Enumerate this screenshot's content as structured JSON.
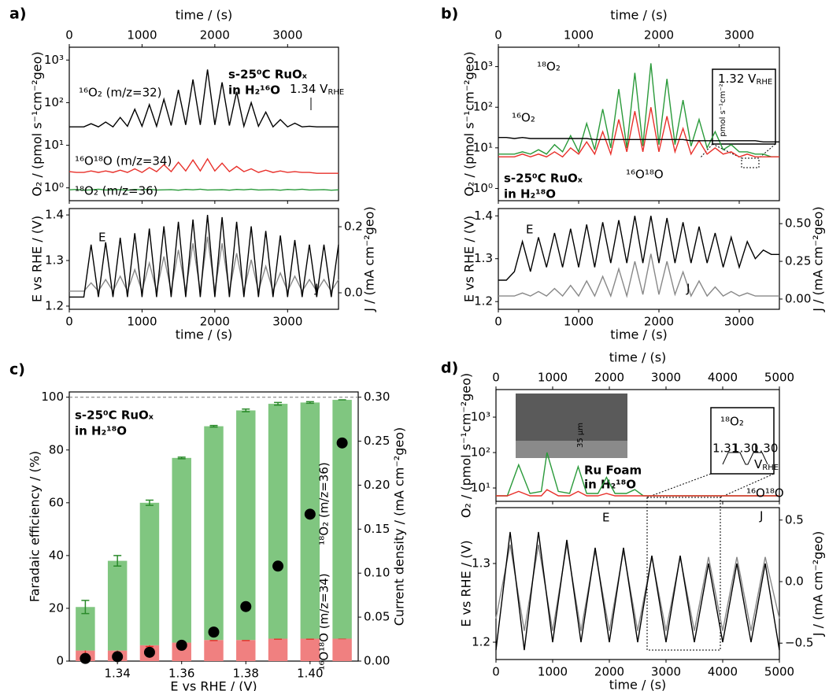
{
  "chart_data": [
    {
      "type": "line",
      "panel": "a)",
      "x_axis": "top",
      "xlabel": "time / (s)",
      "ylabel": "O₂ / (pmol s⁻¹cm⁻²geo)",
      "log_y": true,
      "xlim": [
        0,
        3700
      ],
      "xticks": [
        0,
        1000,
        2000,
        3000
      ],
      "ylim": [
        0.5,
        2000
      ],
      "yticks": [
        {
          "value": 1,
          "label": "10⁰"
        },
        {
          "value": 10,
          "label": "10¹"
        },
        {
          "value": 100,
          "label": "10²"
        },
        {
          "value": 1000,
          "label": "10³"
        }
      ],
      "x": [
        0,
        100,
        200,
        300,
        400,
        500,
        600,
        700,
        800,
        900,
        1000,
        1100,
        1200,
        1300,
        1400,
        1500,
        1600,
        1700,
        1800,
        1900,
        2000,
        2100,
        2200,
        2300,
        2400,
        2500,
        2600,
        2700,
        2800,
        2900,
        3000,
        3100,
        3200,
        3300,
        3400,
        3500,
        3600,
        3700
      ],
      "series": [
        {
          "name": "¹⁶O₂ (m/z=32)",
          "color": "#000000",
          "values": [
            27,
            27,
            27,
            32,
            27,
            35,
            27,
            45,
            28,
            70,
            28,
            90,
            28,
            120,
            29,
            200,
            30,
            350,
            30,
            600,
            30,
            300,
            29,
            180,
            28,
            100,
            28,
            60,
            27,
            40,
            27,
            33,
            27,
            28,
            27,
            27,
            27,
            27
          ]
        },
        {
          "name": "¹⁶O¹⁸O (m/z=34)",
          "color": "#e8302a",
          "values": [
            2.4,
            2.3,
            2.3,
            2.5,
            2.3,
            2.5,
            2.3,
            2.6,
            2.3,
            2.8,
            2.3,
            3.0,
            2.4,
            3.5,
            2.4,
            4.0,
            2.5,
            4.5,
            2.5,
            4.8,
            2.5,
            3.8,
            2.4,
            3.2,
            2.4,
            2.8,
            2.3,
            2.6,
            2.3,
            2.5,
            2.3,
            2.4,
            2.3,
            2.3,
            2.2,
            2.2,
            2.2,
            2.2
          ]
        },
        {
          "name": "¹⁸O₂ (m/z=36)",
          "color": "#2a9a3a",
          "values": [
            0.9,
            0.92,
            0.88,
            0.9,
            0.93,
            0.89,
            0.9,
            0.91,
            0.88,
            0.92,
            0.9,
            0.93,
            0.89,
            0.9,
            0.91,
            0.88,
            0.92,
            0.9,
            0.93,
            0.89,
            0.9,
            0.91,
            0.88,
            0.92,
            0.9,
            0.93,
            0.89,
            0.9,
            0.91,
            0.88,
            0.92,
            0.9,
            0.93,
            0.89,
            0.9,
            0.91,
            0.88,
            0.9
          ]
        }
      ],
      "annotations": [
        {
          "text": "s-25⁰C RuOₓ",
          "bold": true
        },
        {
          "text": "in H₂¹⁶O",
          "bold": true
        },
        {
          "text": "1.34 V",
          "sub": "RHE"
        }
      ]
    },
    {
      "type": "line",
      "x_axis": "bottom",
      "xlabel": "time / (s)",
      "ylabel": "E vs RHE / (V)",
      "y2label": "J / (mA cm⁻²geo)",
      "xlim": [
        0,
        3700
      ],
      "xticks": [
        0,
        1000,
        2000,
        3000
      ],
      "ylim": [
        1.193,
        1.414
      ],
      "yticks": [
        1.2,
        1.3,
        1.4
      ],
      "y2lim": [
        -0.05,
        0.255
      ],
      "y2ticks": [
        {
          "value": 0,
          "label": "0.0"
        },
        0.2
      ],
      "x": [
        0,
        100,
        200,
        300,
        400,
        500,
        600,
        700,
        800,
        900,
        1000,
        1100,
        1200,
        1300,
        1400,
        1500,
        1600,
        1700,
        1800,
        1900,
        2000,
        2100,
        2200,
        2300,
        2400,
        2500,
        2600,
        2700,
        2800,
        2900,
        3000,
        3100,
        3200,
        3300,
        3400,
        3500,
        3600,
        3700
      ],
      "series": [
        {
          "name": "J",
          "color": "#888888",
          "axis": "y2",
          "values": [
            0.005,
            0.005,
            0.005,
            0.03,
            0.005,
            0.04,
            0.005,
            0.05,
            0.005,
            0.07,
            0.005,
            0.09,
            0.005,
            0.11,
            0.005,
            0.13,
            0.005,
            0.15,
            0.005,
            0.17,
            0.005,
            0.15,
            0.005,
            0.12,
            0.005,
            0.1,
            0.005,
            0.08,
            0.005,
            0.06,
            0.005,
            0.05,
            0.005,
            0.04,
            0.005,
            0.04,
            0.005,
            0.04
          ]
        },
        {
          "name": "E",
          "color": "#000000",
          "values": [
            1.22,
            1.22,
            1.22,
            1.335,
            1.22,
            1.34,
            1.22,
            1.35,
            1.22,
            1.36,
            1.22,
            1.37,
            1.22,
            1.375,
            1.22,
            1.385,
            1.22,
            1.39,
            1.22,
            1.4,
            1.22,
            1.395,
            1.22,
            1.385,
            1.22,
            1.375,
            1.22,
            1.365,
            1.22,
            1.355,
            1.22,
            1.345,
            1.22,
            1.335,
            1.22,
            1.335,
            1.22,
            1.335
          ]
        }
      ]
    },
    {
      "type": "line",
      "panel": "b)",
      "x_axis": "top",
      "xlabel": "time / (s)",
      "ylabel": "O₂ / (pmol s⁻¹cm⁻²geo)",
      "log_y": true,
      "xlim": [
        0,
        3500
      ],
      "xticks": [
        0,
        1000,
        2000,
        3000
      ],
      "ylim": [
        0.5,
        3000
      ],
      "yticks": [
        {
          "value": 1,
          "label": "10⁰"
        },
        {
          "value": 10,
          "label": "10¹"
        },
        {
          "value": 100,
          "label": "10²"
        },
        {
          "value": 1000,
          "label": "10³"
        }
      ],
      "x": [
        0,
        100,
        200,
        300,
        400,
        500,
        600,
        700,
        800,
        900,
        1000,
        1100,
        1200,
        1300,
        1400,
        1500,
        1600,
        1700,
        1800,
        1900,
        2000,
        2100,
        2200,
        2300,
        2400,
        2500,
        2600,
        2700,
        2800,
        2900,
        3000,
        3100,
        3200,
        3300,
        3400,
        3500
      ],
      "series": [
        {
          "name": "¹⁸O₂",
          "color": "#2a9a3a",
          "values": [
            7,
            7,
            7,
            8,
            7,
            9,
            7,
            12,
            8,
            20,
            8,
            40,
            9,
            90,
            10,
            280,
            10,
            700,
            11,
            1200,
            12,
            500,
            12,
            150,
            11,
            50,
            10,
            25,
            9,
            12,
            8,
            8,
            7,
            7,
            6,
            6
          ]
        },
        {
          "name": "¹⁶O¹⁸O",
          "color": "#e8302a",
          "values": [
            6,
            6,
            6,
            7,
            6,
            7,
            6,
            8,
            6,
            10,
            7,
            14,
            7,
            25,
            7,
            50,
            8,
            80,
            8,
            100,
            8,
            60,
            8,
            30,
            7,
            15,
            7,
            10,
            7,
            8,
            6,
            7,
            6,
            6,
            6,
            6
          ]
        },
        {
          "name": "¹⁶O₂",
          "color": "#000000",
          "values": [
            18,
            18,
            17,
            18,
            17,
            17,
            17,
            17,
            17,
            17,
            17,
            17,
            16,
            16,
            16,
            16,
            16,
            16,
            16,
            16,
            16,
            16,
            16,
            16,
            15,
            15,
            15,
            15,
            15,
            15,
            15,
            15,
            15,
            14,
            14,
            14
          ]
        }
      ],
      "annotations": [
        {
          "text": "s-25⁰C RuOₓ",
          "bold": true
        },
        {
          "text": "in H₂¹⁸O",
          "bold": true
        },
        {
          "text": "1.32 V",
          "sub": "RHE"
        },
        {
          "text": "pmol s⁻¹cm⁻²"
        }
      ]
    },
    {
      "type": "line",
      "x_axis": "bottom",
      "xlabel": "time / (s)",
      "ylabel": "E vs RHE / (V)",
      "y2label": "J / (mA cm⁻²geo)",
      "xlim": [
        0,
        3500
      ],
      "xticks": [
        0,
        1000,
        2000,
        3000
      ],
      "ylim": [
        1.182,
        1.417
      ],
      "yticks": [
        1.2,
        1.3,
        1.4
      ],
      "y2lim": [
        -0.068,
        0.6
      ],
      "y2ticks": [
        {
          "value": 0,
          "label": "0.00"
        },
        0.25,
        {
          "value": 0.5,
          "label": "0.50"
        }
      ],
      "x": [
        0,
        100,
        200,
        300,
        400,
        500,
        600,
        700,
        800,
        900,
        1000,
        1100,
        1200,
        1300,
        1400,
        1500,
        1600,
        1700,
        1800,
        1900,
        2000,
        2100,
        2200,
        2300,
        2400,
        2500,
        2600,
        2700,
        2800,
        2900,
        3000,
        3100,
        3200,
        3300,
        3400,
        3500
      ],
      "series": [
        {
          "name": "J",
          "color": "#888888",
          "axis": "y2",
          "values": [
            0.02,
            0.02,
            0.02,
            0.04,
            0.02,
            0.05,
            0.02,
            0.07,
            0.02,
            0.09,
            0.02,
            0.12,
            0.02,
            0.15,
            0.02,
            0.2,
            0.02,
            0.25,
            0.03,
            0.3,
            0.03,
            0.25,
            0.03,
            0.18,
            0.02,
            0.12,
            0.02,
            0.08,
            0.02,
            0.05,
            0.02,
            0.04,
            0.02,
            0.02,
            0.02,
            0.02
          ]
        },
        {
          "name": "E",
          "color": "#000000",
          "values": [
            1.25,
            1.25,
            1.27,
            1.34,
            1.27,
            1.35,
            1.28,
            1.36,
            1.28,
            1.37,
            1.28,
            1.38,
            1.28,
            1.385,
            1.29,
            1.39,
            1.29,
            1.4,
            1.29,
            1.4,
            1.29,
            1.395,
            1.29,
            1.385,
            1.29,
            1.375,
            1.29,
            1.36,
            1.28,
            1.35,
            1.28,
            1.34,
            1.3,
            1.32,
            1.31,
            1.31
          ]
        }
      ]
    },
    {
      "type": "bar",
      "panel": "c)",
      "xlabel": "E vs RHE / (V)",
      "ylabel": "Faradaic efficiency / (%)",
      "y2label": "Current density / (mA cm⁻²geo)",
      "x": [
        1.33,
        1.34,
        1.35,
        1.36,
        1.37,
        1.38,
        1.39,
        1.4,
        1.41
      ],
      "xlim": [
        1.325,
        1.415
      ],
      "xticks": [
        1.34,
        1.36,
        1.38,
        {
          "value": 1.4,
          "label": "1.40"
        }
      ],
      "ylim": [
        0,
        102
      ],
      "yticks": [
        0,
        20,
        40,
        60,
        80,
        100
      ],
      "y2lim": [
        0,
        0.306
      ],
      "y2ticks": [
        {
          "value": 0,
          "label": "0.00"
        },
        0.05,
        {
          "value": 0.1,
          "label": "0.10"
        },
        0.15,
        {
          "value": 0.2,
          "label": "0.20"
        },
        0.25,
        {
          "value": 0.3,
          "label": "0.30"
        }
      ],
      "reference_line": 100,
      "series": [
        {
          "name": "¹⁶O¹⁸O (m/z=34)",
          "color": "#f08080",
          "values": [
            4,
            4,
            6,
            7,
            8,
            8,
            8.5,
            8.5,
            8.5
          ],
          "errors": [
            3,
            2,
            0.5,
            0.3,
            0.2,
            0.2,
            0.2,
            0.2,
            0
          ]
        },
        {
          "name": "¹⁸O₂ (m/z=36)",
          "color": "#80c680",
          "values": [
            16.5,
            34,
            54,
            70,
            81,
            87,
            89,
            89.5,
            90.5
          ],
          "errors": [
            2.5,
            2,
            1,
            0.3,
            0.3,
            0.5,
            0.5,
            0.3,
            0
          ]
        },
        {
          "type": "scatter",
          "color": "#000000",
          "axis": "y2",
          "values": [
            0.003,
            0.005,
            0.01,
            0.018,
            0.033,
            0.062,
            0.108,
            0.167,
            0.248
          ]
        }
      ],
      "annotations": [
        {
          "text": "s-25⁰C RuOₓ",
          "bold": true
        },
        {
          "text": "in H₂¹⁸O",
          "bold": true
        }
      ]
    },
    {
      "type": "line",
      "panel": "d)",
      "x_axis": "top",
      "xlabel": "time / (s)",
      "ylabel": "O₂ / (pmol s⁻¹cm⁻²geo)",
      "log_y": true,
      "xlim": [
        0,
        5000
      ],
      "xticks": [
        0,
        1000,
        2000,
        3000,
        4000,
        5000
      ],
      "ylim": [
        4.2,
        6000
      ],
      "yticks": [
        {
          "value": 10,
          "label": "10¹"
        },
        {
          "value": 100,
          "label": "10²"
        },
        {
          "value": 1000,
          "label": "10³"
        }
      ],
      "x": [
        0,
        200,
        400,
        600,
        800,
        900,
        1100,
        1300,
        1450,
        1600,
        1800,
        1950,
        2100,
        2300,
        2450,
        2600,
        3000,
        3500,
        4000,
        4500,
        5000
      ],
      "series": [
        {
          "name": "¹⁸O₂",
          "color": "#2a9a3a",
          "values": [
            6,
            6,
            45,
            7,
            8,
            100,
            8,
            7,
            40,
            7,
            7,
            20,
            7,
            7,
            9,
            6,
            6,
            6,
            6,
            6,
            6
          ]
        },
        {
          "name": "¹⁶O¹⁸O",
          "color": "#e8302a",
          "values": [
            6,
            6,
            8,
            6,
            6,
            9,
            6,
            6,
            8,
            6,
            6,
            7,
            6,
            6,
            6,
            6,
            6,
            6,
            6,
            6,
            6
          ]
        }
      ],
      "annotations": [
        {
          "text": "Ru Foam",
          "bold": true
        },
        {
          "text": "in H₂¹⁸O",
          "bold": true
        },
        {
          "text": "35 µm"
        },
        {
          "text": "1.31"
        },
        {
          "text": "1.30"
        },
        {
          "text": "1.30"
        },
        {
          "text": "V",
          "sub": "RHE"
        }
      ]
    },
    {
      "type": "line",
      "x_axis": "bottom",
      "xlabel": "time / (s)",
      "ylabel": "E vs RHE / (V)",
      "y2label": "J / (mA cm⁻²geo)",
      "xlim": [
        0,
        5000
      ],
      "xticks": [
        0,
        1000,
        2000,
        3000,
        4000,
        5000
      ],
      "ylim": [
        1.178,
        1.371
      ],
      "yticks": [
        1.2,
        1.3
      ],
      "y2lim": [
        -0.633,
        0.601
      ],
      "y2ticks": [
        {
          "value": -0.5,
          "label": "−0.5"
        },
        {
          "value": 0,
          "label": "0.0"
        },
        0.5
      ],
      "x": [
        0,
        250,
        500,
        750,
        1000,
        1250,
        1500,
        1750,
        2000,
        2250,
        2500,
        2750,
        3000,
        3250,
        3500,
        3750,
        4000,
        4250,
        4500,
        4750,
        5000
      ],
      "series": [
        {
          "name": "J",
          "color": "#888888",
          "axis": "y2",
          "values": [
            -0.3,
            0.3,
            -0.4,
            0.3,
            -0.4,
            0.3,
            -0.4,
            0.25,
            -0.4,
            0.25,
            -0.4,
            0.2,
            -0.4,
            0.2,
            -0.4,
            0.2,
            -0.4,
            0.2,
            -0.4,
            0.2,
            -0.3
          ]
        },
        {
          "name": "E",
          "color": "#000000",
          "values": [
            1.19,
            1.34,
            1.19,
            1.34,
            1.2,
            1.33,
            1.2,
            1.32,
            1.2,
            1.32,
            1.2,
            1.31,
            1.2,
            1.31,
            1.2,
            1.3,
            1.2,
            1.3,
            1.2,
            1.3,
            1.19
          ]
        }
      ]
    }
  ]
}
